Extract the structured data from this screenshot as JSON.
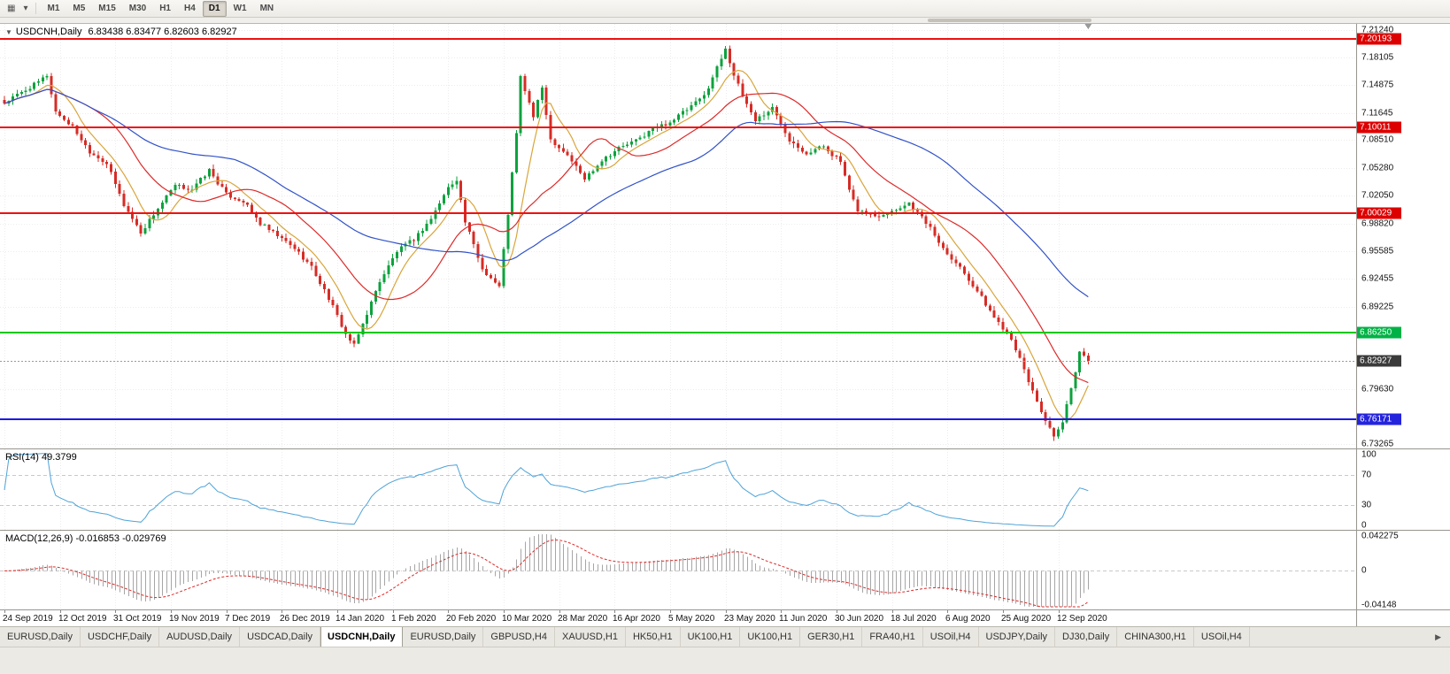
{
  "icons": {
    "chart_menu": "▦",
    "dropdown": "▾",
    "collapse": "▼",
    "tab_scroll_right": "▶"
  },
  "toolbar": {
    "timeframes": [
      "M1",
      "M5",
      "M15",
      "M30",
      "H1",
      "H4",
      "D1",
      "W1",
      "MN"
    ],
    "active": "D1"
  },
  "chart": {
    "title": "USDCNH,Daily",
    "ohlc_text": "6.83438 6.83477 6.82603 6.82927",
    "open": "6.83438",
    "high": "6.83477",
    "low": "6.82603",
    "close": "6.82927",
    "price_axis": {
      "min": 6.727,
      "max": 7.2195,
      "ticks": [
        "7.21240",
        "7.18105",
        "7.14875",
        "7.11645",
        "7.08510",
        "7.05280",
        "7.02050",
        "6.98820",
        "6.95585",
        "6.92455",
        "6.89225",
        "6.85995",
        "6.79630",
        "6.73265"
      ]
    },
    "badges": [
      {
        "label": "7.20193",
        "price": 7.20193,
        "bg": "#dd0000"
      },
      {
        "label": "7.10011",
        "price": 7.10011,
        "bg": "#dd0000"
      },
      {
        "label": "7.00029",
        "price": 7.00029,
        "bg": "#dd0000"
      },
      {
        "label": "6.86250",
        "price": 6.8625,
        "bg": "#00b246"
      },
      {
        "label": "6.82927",
        "price": 6.82927,
        "bg": "#3a3a3a"
      },
      {
        "label": "6.76171",
        "price": 6.76171,
        "bg": "#2424dd"
      }
    ],
    "hlines": [
      {
        "price": 7.20193,
        "color": "#ee1111",
        "width": 2
      },
      {
        "price": 7.10011,
        "color": "#ee1111",
        "width": 2
      },
      {
        "price": 7.00029,
        "color": "#ee1111",
        "width": 2
      },
      {
        "price": 6.8625,
        "color": "#00c800",
        "width": 2
      },
      {
        "price": 6.76171,
        "color": "#1a1ae6",
        "width": 2
      }
    ],
    "current_price": {
      "label": "6.82927",
      "price": 6.82927
    },
    "dates": [
      "24 Sep 2019",
      "12 Oct 2019",
      "31 Oct 2019",
      "19 Nov 2019",
      "7 Dec 2019",
      "26 Dec 2019",
      "14 Jan 2020",
      "1 Feb 2020",
      "20 Feb 2020",
      "10 Mar 2020",
      "28 Mar 2020",
      "16 Apr 2020",
      "5 May 2020",
      "23 May 2020",
      "11 Jun 2020",
      "30 Jun 2020",
      "18 Jul 2020",
      "6 Aug 2020",
      "25 Aug 2020",
      "12 Sep 2020"
    ],
    "bars_per_label": 13
  },
  "chart_data": {
    "type": "candlestick",
    "symbol": "USDCNH",
    "period": "Daily",
    "bar_count": 255,
    "x_start_label": "24 Sep 2019",
    "x_end_label": "12 Sep 2020",
    "price_range_visible": [
      6.727,
      7.2195
    ],
    "key_levels": {
      "resistance_lines": [
        7.20193,
        7.10011,
        7.00029
      ],
      "support_green": 6.8625,
      "support_blue": 6.76171,
      "last_price": 6.82927
    },
    "anchor_points": {
      "bar_index": [
        0,
        4,
        8,
        10,
        12,
        16,
        20,
        24,
        28,
        32,
        36,
        40,
        44,
        48,
        52,
        56,
        60,
        64,
        68,
        72,
        76,
        80,
        82,
        84,
        88,
        92,
        96,
        100,
        104,
        106,
        108,
        112,
        116,
        118,
        120,
        121,
        124,
        126,
        128,
        132,
        136,
        140,
        144,
        148,
        152,
        156,
        160,
        164,
        168,
        169,
        171,
        173,
        176,
        180,
        184,
        188,
        192,
        196,
        198,
        200,
        204,
        208,
        212,
        216,
        220,
        224,
        228,
        232,
        236,
        240,
        244,
        246,
        248,
        250,
        252,
        254
      ],
      "close": [
        7.128,
        7.14,
        7.152,
        7.16,
        7.118,
        7.1,
        7.072,
        7.058,
        7.01,
        6.978,
        7.006,
        7.032,
        7.028,
        7.05,
        7.022,
        7.014,
        6.988,
        6.974,
        6.96,
        6.938,
        6.902,
        6.86,
        6.847,
        6.872,
        6.922,
        6.956,
        6.97,
        6.994,
        7.03,
        7.04,
        6.99,
        6.936,
        6.915,
        7.0,
        7.092,
        7.158,
        7.112,
        7.146,
        7.086,
        7.068,
        7.04,
        7.062,
        7.076,
        7.084,
        7.098,
        7.106,
        7.12,
        7.136,
        7.18,
        7.192,
        7.16,
        7.136,
        7.108,
        7.122,
        7.086,
        7.07,
        7.078,
        7.06,
        7.025,
        7.004,
        6.997,
        7.003,
        7.012,
        6.99,
        6.96,
        6.938,
        6.91,
        6.88,
        6.856,
        6.806,
        6.76,
        6.74,
        6.758,
        6.796,
        6.84,
        6.82927
      ]
    },
    "moving_averages": [
      {
        "period": 8,
        "color": "#d9a53a"
      },
      {
        "period": 21,
        "color": "#dd2a2a"
      },
      {
        "period": 55,
        "color": "#3152c8"
      }
    ],
    "colors": {
      "candle_up": "#0da23e",
      "candle_down": "#d62c26"
    }
  },
  "rsi": {
    "label": "RSI(14) 49.3799",
    "period": 14,
    "last_value": "49.3799",
    "levels": [
      "100",
      "70",
      "30",
      "0"
    ],
    "color": "#4fa3d8"
  },
  "macd": {
    "label": "MACD(12,26,9) -0.016853 -0.029769",
    "fast": 12,
    "slow": 26,
    "signal": 9,
    "last_values": "-0.016853 -0.029769",
    "scale_top": "0.042275",
    "scale_zero": "0",
    "scale_bottom": "-0.04148",
    "histogram_color": "#a6a6a6",
    "signal_color": "#dd2a2a"
  },
  "tabs": {
    "items": [
      "EURUSD,Daily",
      "USDCHF,Daily",
      "AUDUSD,Daily",
      "USDCAD,Daily",
      "USDCNH,Daily",
      "EURUSD,Daily",
      "GBPUSD,H4",
      "XAUUSD,H1",
      "HK50,H1",
      "UK100,H1",
      "UK100,H1",
      "GER30,H1",
      "FRA40,H1",
      "USOil,H4",
      "USDJPY,Daily",
      "DJ30,Daily",
      "CHINA300,H1",
      "USOil,H4"
    ],
    "active_index": 4,
    "scroll_right_icon": "▶"
  }
}
